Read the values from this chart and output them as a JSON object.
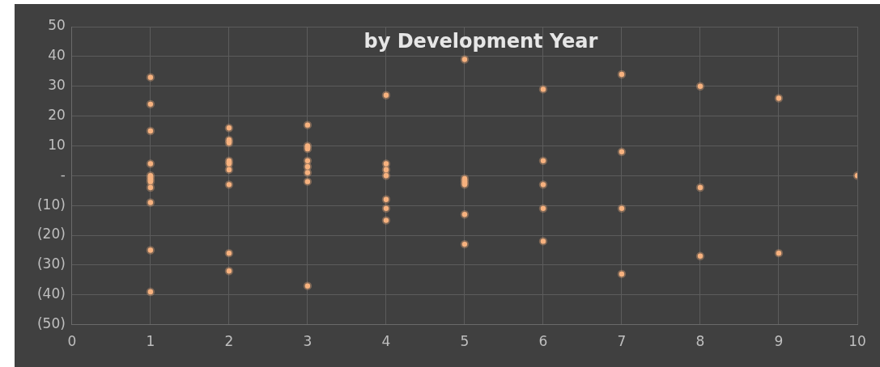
{
  "chart_data": {
    "type": "scatter",
    "title": "by Development Year",
    "series": [
      {
        "color": "#f7b27f",
        "x": [
          1,
          1,
          1,
          1,
          1,
          1,
          1,
          1,
          1,
          1,
          1,
          2,
          2,
          2,
          2,
          2,
          2,
          2,
          2,
          2,
          3,
          3,
          3,
          3,
          3,
          3,
          3,
          3,
          4,
          4,
          4,
          4,
          4,
          4,
          4,
          5,
          5,
          5,
          5,
          5,
          5,
          6,
          6,
          6,
          6,
          6,
          7,
          7,
          7,
          7,
          8,
          8,
          8,
          9,
          9,
          10
        ],
        "values": [
          33,
          24,
          15,
          4,
          0,
          -1,
          -2,
          -4,
          -9,
          -25,
          -39,
          16,
          12,
          11,
          5,
          4,
          2,
          -3,
          -26,
          -32,
          17,
          10,
          9,
          5,
          3,
          1,
          -2,
          -37,
          27,
          4,
          2,
          0,
          -8,
          -11,
          -15,
          39,
          -1,
          -2,
          -3,
          -13,
          -23,
          29,
          5,
          -3,
          -11,
          -22,
          34,
          8,
          -11,
          -33,
          30,
          -4,
          -27,
          26,
          -26,
          0
        ]
      }
    ],
    "xlim": [
      0,
      10
    ],
    "xticks": [
      0,
      1,
      2,
      3,
      4,
      5,
      6,
      7,
      8,
      9,
      10
    ],
    "ylim": [
      -50,
      50
    ],
    "yticks": [
      {
        "value": -50,
        "label": "(50)"
      },
      {
        "value": -40,
        "label": "(40)"
      },
      {
        "value": -30,
        "label": "(30)"
      },
      {
        "value": -20,
        "label": "(20)"
      },
      {
        "value": -10,
        "label": "(10)"
      },
      {
        "value": 0,
        "label": "-"
      },
      10,
      20,
      30,
      40,
      50
    ],
    "grid": true,
    "legend": false,
    "marker": "circle"
  }
}
